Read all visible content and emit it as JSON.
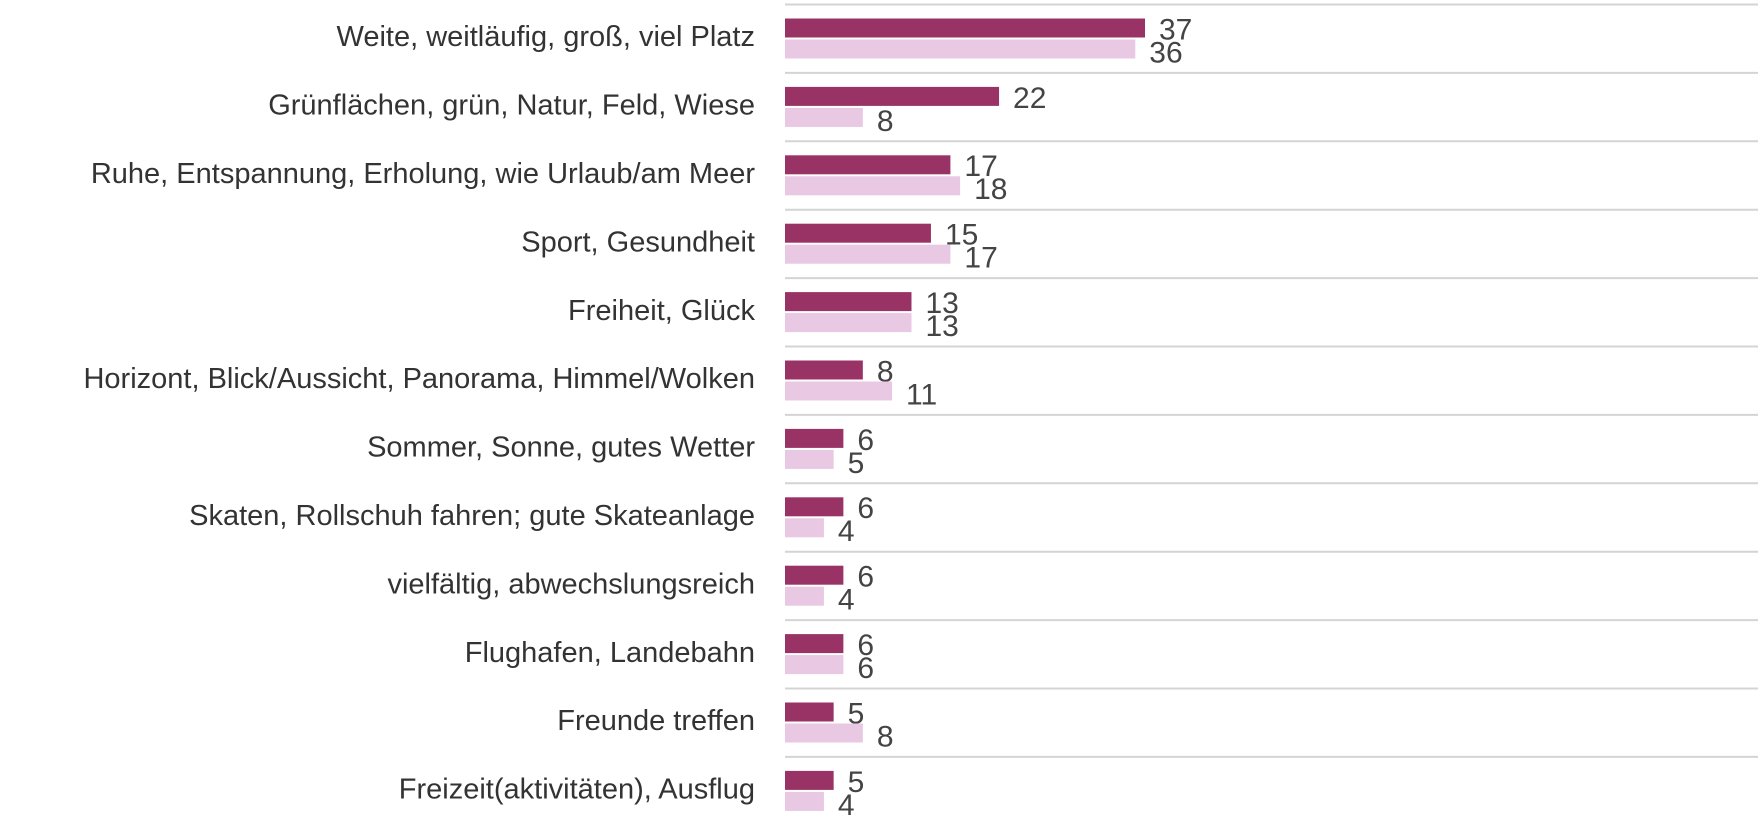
{
  "chart_data": {
    "type": "bar",
    "orientation": "horizontal",
    "categories": [
      "Weite, weitläufig, groß, viel Platz",
      "Grünflächen, grün, Natur, Feld, Wiese",
      "Ruhe, Entspannung, Erholung, wie Urlaub/am Meer",
      "Sport, Gesundheit",
      "Freiheit, Glück",
      "Horizont, Blick/Aussicht, Panorama, Himmel/Wolken",
      "Sommer, Sonne, gutes Wetter",
      "Skaten, Rollschuh fahren; gute Skateanlage",
      "vielfältig, abwechslungsreich",
      "Flughafen, Landebahn",
      "Freunde treffen",
      "Freizeit(aktivitäten), Ausflug"
    ],
    "series": [
      {
        "color": "#993366",
        "values": [
          37,
          22,
          17,
          15,
          13,
          8,
          6,
          6,
          6,
          6,
          5,
          5
        ]
      },
      {
        "color": "#e8c8e2",
        "values": [
          36,
          8,
          18,
          17,
          13,
          11,
          5,
          4,
          4,
          6,
          8,
          4
        ]
      }
    ],
    "xlim": [
      0,
      100
    ]
  }
}
